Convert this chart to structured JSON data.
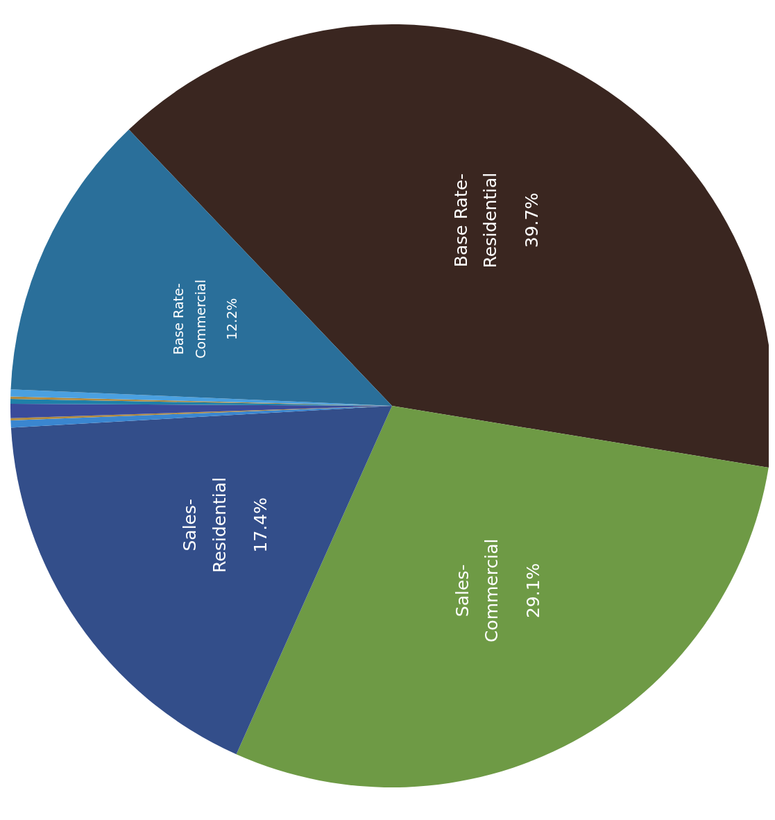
{
  "chart_data": {
    "type": "pie",
    "categories": [
      "Base Rate-Residential",
      "Sales-Commercial",
      "Sales-Residential",
      null,
      null,
      null,
      null,
      null,
      null,
      "Base Rate-Commercial"
    ],
    "values": [
      39.7,
      29.1,
      17.4,
      0.3,
      0.1,
      0.6,
      0.2,
      0.1,
      0.3,
      12.2
    ],
    "value_labels": [
      "39.7%",
      "29.1%",
      "17.4%",
      null,
      null,
      null,
      null,
      null,
      null,
      "12.2%"
    ],
    "colors": [
      "#3a2620",
      "#6e9a45",
      "#334e8a",
      "#3a86d0",
      "#b08a40",
      "#3a4a9a",
      "#1f80a8",
      "#b08a40",
      "#4aa0e0",
      "#2a6f9a"
    ]
  }
}
